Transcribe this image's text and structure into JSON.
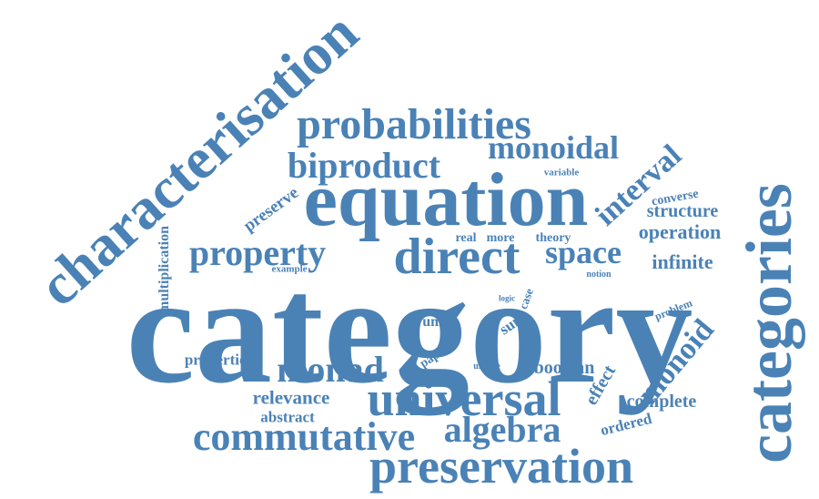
{
  "style": {
    "word_color": "#4a82b6",
    "background": "#ffffff"
  },
  "words": {
    "category": "category",
    "equation": "equation",
    "characterisation": "characterisation",
    "categories": "categories",
    "preservation": "preservation",
    "universal": "universal",
    "direct": "direct",
    "probabilities": "probabilities",
    "commutative": "commutative",
    "algebra": "algebra",
    "biproduct": "biproduct",
    "monad": "monad",
    "property": "property",
    "monoidal": "monoidal",
    "space": "space",
    "interval": "interval",
    "monoid": "monoid",
    "operation": "operation",
    "structure": "structure",
    "infinite": "infinite",
    "complete": "complete",
    "effect": "effect",
    "boolean": "boolean",
    "ordered": "ordered",
    "relevance": "relevance",
    "abstract": "abstract",
    "properties": "properties",
    "multiplication": "multiplication",
    "preserve": "preserve",
    "example": "example",
    "unit": "unit",
    "sum": "sum",
    "case": "case",
    "logic": "logic",
    "paper": "paper",
    "unique": "unique",
    "real": "real",
    "more": "more",
    "theory": "theory",
    "converse": "converse",
    "variable": "variable",
    "notion": "notion",
    "problem": "problem"
  }
}
